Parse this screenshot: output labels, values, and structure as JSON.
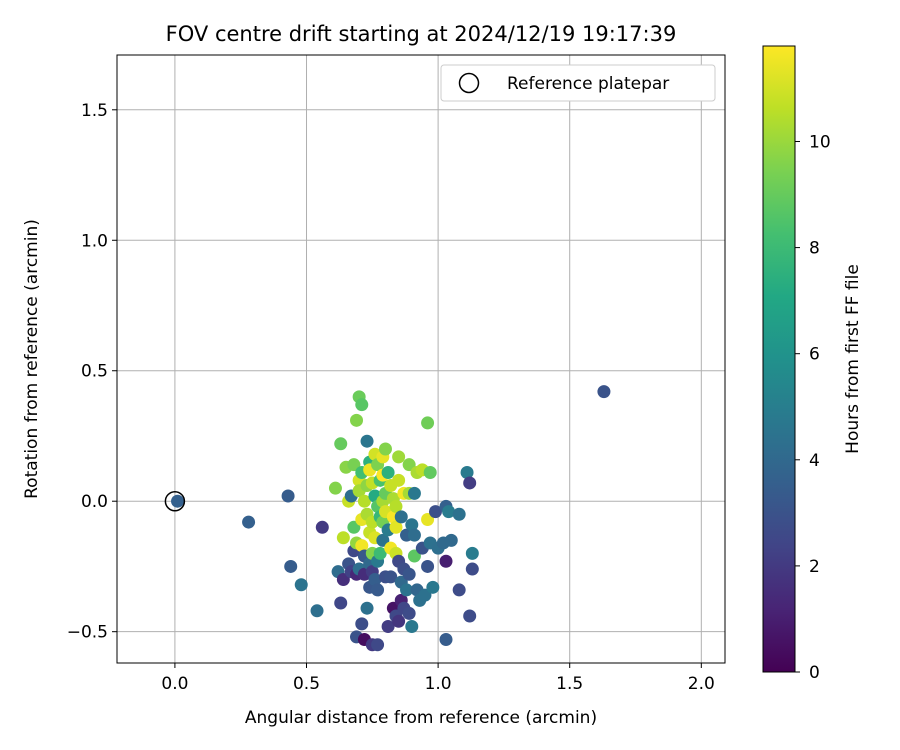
{
  "chart_data": {
    "type": "scatter",
    "title": "FOV centre drift starting at 2024/12/19 19:17:39",
    "xlabel": "Angular distance from reference (arcmin)",
    "ylabel": "Rotation from reference (arcmin)",
    "xlim": [
      -0.22,
      2.09
    ],
    "ylim": [
      -0.62,
      1.71
    ],
    "xticks": [
      0.0,
      0.5,
      1.0,
      1.5,
      2.0
    ],
    "xtick_labels": [
      "0.0",
      "0.5",
      "1.0",
      "1.5",
      "2.0"
    ],
    "yticks": [
      -0.5,
      0.0,
      0.5,
      1.0,
      1.5
    ],
    "ytick_labels": [
      "−0.5",
      "0.0",
      "0.5",
      "1.0",
      "1.5"
    ],
    "grid": true,
    "legend": {
      "position": "top-right",
      "entries": [
        "Reference platepar"
      ]
    },
    "reference_point": {
      "x": 0.0,
      "y": 0.0
    },
    "colorbar": {
      "label": "Hours from first FF file",
      "colormap": "viridis",
      "range": [
        0,
        11.8
      ],
      "ticks": [
        0,
        2,
        4,
        6,
        8,
        10
      ],
      "tick_labels": [
        "0",
        "2",
        "4",
        "6",
        "8",
        "10"
      ]
    },
    "points": [
      {
        "x": 0.01,
        "y": 0.0,
        "c": 3.6
      },
      {
        "x": 0.28,
        "y": -0.08,
        "c": 3.6
      },
      {
        "x": 0.43,
        "y": 0.02,
        "c": 3.4
      },
      {
        "x": 0.44,
        "y": -0.25,
        "c": 3.4
      },
      {
        "x": 0.48,
        "y": -0.32,
        "c": 4.5
      },
      {
        "x": 0.54,
        "y": -0.42,
        "c": 4.3
      },
      {
        "x": 0.56,
        "y": -0.1,
        "c": 2.0
      },
      {
        "x": 0.61,
        "y": 0.05,
        "c": 9.6
      },
      {
        "x": 0.62,
        "y": -0.27,
        "c": 4.2
      },
      {
        "x": 0.63,
        "y": 0.22,
        "c": 9.0
      },
      {
        "x": 0.63,
        "y": -0.39,
        "c": 2.5
      },
      {
        "x": 0.64,
        "y": -0.14,
        "c": 10.6
      },
      {
        "x": 0.64,
        "y": -0.3,
        "c": 1.6
      },
      {
        "x": 0.65,
        "y": 0.13,
        "c": 9.7
      },
      {
        "x": 0.66,
        "y": 0.0,
        "c": 10.8
      },
      {
        "x": 0.66,
        "y": -0.24,
        "c": 3.0
      },
      {
        "x": 0.67,
        "y": 0.02,
        "c": 4.3
      },
      {
        "x": 0.67,
        "y": -0.27,
        "c": 2.3
      },
      {
        "x": 0.68,
        "y": 0.14,
        "c": 9.4
      },
      {
        "x": 0.68,
        "y": -0.1,
        "c": 8.7
      },
      {
        "x": 0.68,
        "y": -0.19,
        "c": 2.6
      },
      {
        "x": 0.69,
        "y": 0.31,
        "c": 9.6
      },
      {
        "x": 0.69,
        "y": -0.16,
        "c": 9.9
      },
      {
        "x": 0.69,
        "y": -0.28,
        "c": 1.3
      },
      {
        "x": 0.69,
        "y": -0.52,
        "c": 3.0
      },
      {
        "x": 0.7,
        "y": 0.4,
        "c": 9.1
      },
      {
        "x": 0.7,
        "y": 0.08,
        "c": 11.0
      },
      {
        "x": 0.7,
        "y": 0.04,
        "c": 10.2
      },
      {
        "x": 0.7,
        "y": -0.26,
        "c": 4.3
      },
      {
        "x": 0.71,
        "y": 0.37,
        "c": 8.7
      },
      {
        "x": 0.71,
        "y": 0.11,
        "c": 8.2
      },
      {
        "x": 0.71,
        "y": -0.07,
        "c": 11.4
      },
      {
        "x": 0.71,
        "y": -0.17,
        "c": 11.6
      },
      {
        "x": 0.71,
        "y": -0.47,
        "c": 2.8
      },
      {
        "x": 0.72,
        "y": 0.0,
        "c": 10.5
      },
      {
        "x": 0.72,
        "y": -0.21,
        "c": 3.2
      },
      {
        "x": 0.72,
        "y": -0.28,
        "c": 1.5
      },
      {
        "x": 0.72,
        "y": -0.53,
        "c": 0.4
      },
      {
        "x": 0.73,
        "y": 0.23,
        "c": 4.6
      },
      {
        "x": 0.73,
        "y": 0.06,
        "c": 9.8
      },
      {
        "x": 0.73,
        "y": -0.05,
        "c": 10.3
      },
      {
        "x": 0.73,
        "y": -0.41,
        "c": 4.4
      },
      {
        "x": 0.74,
        "y": 0.15,
        "c": 7.5
      },
      {
        "x": 0.74,
        "y": 0.12,
        "c": 11.5
      },
      {
        "x": 0.74,
        "y": -0.12,
        "c": 10.8
      },
      {
        "x": 0.74,
        "y": -0.24,
        "c": 4.0
      },
      {
        "x": 0.74,
        "y": -0.33,
        "c": 3.2
      },
      {
        "x": 0.75,
        "y": 0.07,
        "c": 10.7
      },
      {
        "x": 0.75,
        "y": -0.08,
        "c": 10.6
      },
      {
        "x": 0.75,
        "y": -0.2,
        "c": 9.6
      },
      {
        "x": 0.75,
        "y": -0.27,
        "c": 2.1
      },
      {
        "x": 0.75,
        "y": -0.55,
        "c": 2.0
      },
      {
        "x": 0.76,
        "y": 0.18,
        "c": 11.0
      },
      {
        "x": 0.76,
        "y": 0.02,
        "c": 7.2
      },
      {
        "x": 0.76,
        "y": -0.14,
        "c": 11.2
      },
      {
        "x": 0.76,
        "y": -0.3,
        "c": 3.5
      },
      {
        "x": 0.77,
        "y": 0.14,
        "c": 9.5
      },
      {
        "x": 0.77,
        "y": -0.02,
        "c": 8.6
      },
      {
        "x": 0.77,
        "y": -0.23,
        "c": 4.8
      },
      {
        "x": 0.77,
        "y": -0.34,
        "c": 3.3
      },
      {
        "x": 0.77,
        "y": -0.55,
        "c": 2.6
      },
      {
        "x": 0.78,
        "y": 0.08,
        "c": 8.4
      },
      {
        "x": 0.78,
        "y": -0.06,
        "c": 7.8
      },
      {
        "x": 0.78,
        "y": -0.2,
        "c": 8.0
      },
      {
        "x": 0.79,
        "y": 0.17,
        "c": 11.4
      },
      {
        "x": 0.79,
        "y": 0.1,
        "c": 11.8
      },
      {
        "x": 0.79,
        "y": 0.0,
        "c": 10.2
      },
      {
        "x": 0.79,
        "y": -0.08,
        "c": 9.3
      },
      {
        "x": 0.79,
        "y": -0.15,
        "c": 4.5
      },
      {
        "x": 0.8,
        "y": 0.2,
        "c": 9.6
      },
      {
        "x": 0.8,
        "y": 0.03,
        "c": 9.0
      },
      {
        "x": 0.8,
        "y": -0.04,
        "c": 11.1
      },
      {
        "x": 0.8,
        "y": -0.29,
        "c": 2.9
      },
      {
        "x": 0.81,
        "y": 0.11,
        "c": 7.5
      },
      {
        "x": 0.81,
        "y": -0.11,
        "c": 4.9
      },
      {
        "x": 0.81,
        "y": -0.48,
        "c": 2.1
      },
      {
        "x": 0.82,
        "y": 0.06,
        "c": 10.8
      },
      {
        "x": 0.82,
        "y": -0.18,
        "c": 11.6
      },
      {
        "x": 0.82,
        "y": -0.29,
        "c": 3.0
      },
      {
        "x": 0.83,
        "y": 0.01,
        "c": 10.3
      },
      {
        "x": 0.83,
        "y": -0.06,
        "c": 11.7
      },
      {
        "x": 0.83,
        "y": -0.41,
        "c": 0.6
      },
      {
        "x": 0.84,
        "y": -0.02,
        "c": 10.5
      },
      {
        "x": 0.84,
        "y": -0.1,
        "c": 11.3
      },
      {
        "x": 0.84,
        "y": -0.2,
        "c": 10.9
      },
      {
        "x": 0.84,
        "y": -0.44,
        "c": 2.6
      },
      {
        "x": 0.85,
        "y": 0.17,
        "c": 10.1
      },
      {
        "x": 0.85,
        "y": 0.08,
        "c": 10.8
      },
      {
        "x": 0.85,
        "y": -0.23,
        "c": 2.6
      },
      {
        "x": 0.85,
        "y": -0.46,
        "c": 1.8
      },
      {
        "x": 0.86,
        "y": -0.06,
        "c": 4.3
      },
      {
        "x": 0.86,
        "y": -0.31,
        "c": 4.0
      },
      {
        "x": 0.86,
        "y": -0.38,
        "c": 1.1
      },
      {
        "x": 0.87,
        "y": 0.03,
        "c": 11.6
      },
      {
        "x": 0.87,
        "y": -0.26,
        "c": 2.8
      },
      {
        "x": 0.87,
        "y": -0.41,
        "c": 2.5
      },
      {
        "x": 0.88,
        "y": -0.13,
        "c": 3.6
      },
      {
        "x": 0.88,
        "y": -0.34,
        "c": 4.5
      },
      {
        "x": 0.89,
        "y": 0.14,
        "c": 9.6
      },
      {
        "x": 0.89,
        "y": 0.03,
        "c": 10.2
      },
      {
        "x": 0.89,
        "y": -0.28,
        "c": 3.1
      },
      {
        "x": 0.89,
        "y": -0.43,
        "c": 2.7
      },
      {
        "x": 0.9,
        "y": -0.09,
        "c": 4.6
      },
      {
        "x": 0.9,
        "y": -0.48,
        "c": 4.7
      },
      {
        "x": 0.91,
        "y": 0.03,
        "c": 4.7
      },
      {
        "x": 0.91,
        "y": -0.13,
        "c": 4.2
      },
      {
        "x": 0.91,
        "y": -0.21,
        "c": 8.8
      },
      {
        "x": 0.92,
        "y": 0.11,
        "c": 10.3
      },
      {
        "x": 0.92,
        "y": -0.34,
        "c": 3.9
      },
      {
        "x": 0.93,
        "y": -0.38,
        "c": 4.4
      },
      {
        "x": 0.94,
        "y": -0.18,
        "c": 3.0
      },
      {
        "x": 0.94,
        "y": 0.12,
        "c": 10.6
      },
      {
        "x": 0.95,
        "y": -0.36,
        "c": 4.4
      },
      {
        "x": 0.96,
        "y": 0.3,
        "c": 9.2
      },
      {
        "x": 0.96,
        "y": -0.07,
        "c": 11.4
      },
      {
        "x": 0.96,
        "y": -0.25,
        "c": 3.0
      },
      {
        "x": 0.97,
        "y": 0.11,
        "c": 8.9
      },
      {
        "x": 0.97,
        "y": -0.16,
        "c": 4.4
      },
      {
        "x": 0.98,
        "y": -0.33,
        "c": 4.7
      },
      {
        "x": 0.99,
        "y": -0.04,
        "c": 2.9
      },
      {
        "x": 1.0,
        "y": -0.18,
        "c": 4.3
      },
      {
        "x": 1.02,
        "y": -0.16,
        "c": 4.0
      },
      {
        "x": 1.03,
        "y": -0.02,
        "c": 3.6
      },
      {
        "x": 1.03,
        "y": -0.23,
        "c": 1.0
      },
      {
        "x": 1.03,
        "y": -0.53,
        "c": 3.4
      },
      {
        "x": 1.04,
        "y": -0.04,
        "c": 4.9
      },
      {
        "x": 1.05,
        "y": -0.15,
        "c": 4.0
      },
      {
        "x": 1.08,
        "y": -0.05,
        "c": 4.4
      },
      {
        "x": 1.08,
        "y": -0.34,
        "c": 2.7
      },
      {
        "x": 1.11,
        "y": 0.11,
        "c": 4.8
      },
      {
        "x": 1.12,
        "y": 0.07,
        "c": 2.1
      },
      {
        "x": 1.12,
        "y": -0.44,
        "c": 2.7
      },
      {
        "x": 1.13,
        "y": -0.2,
        "c": 4.9
      },
      {
        "x": 1.13,
        "y": -0.26,
        "c": 2.7
      },
      {
        "x": 1.63,
        "y": 0.42,
        "c": 3.0
      }
    ]
  }
}
